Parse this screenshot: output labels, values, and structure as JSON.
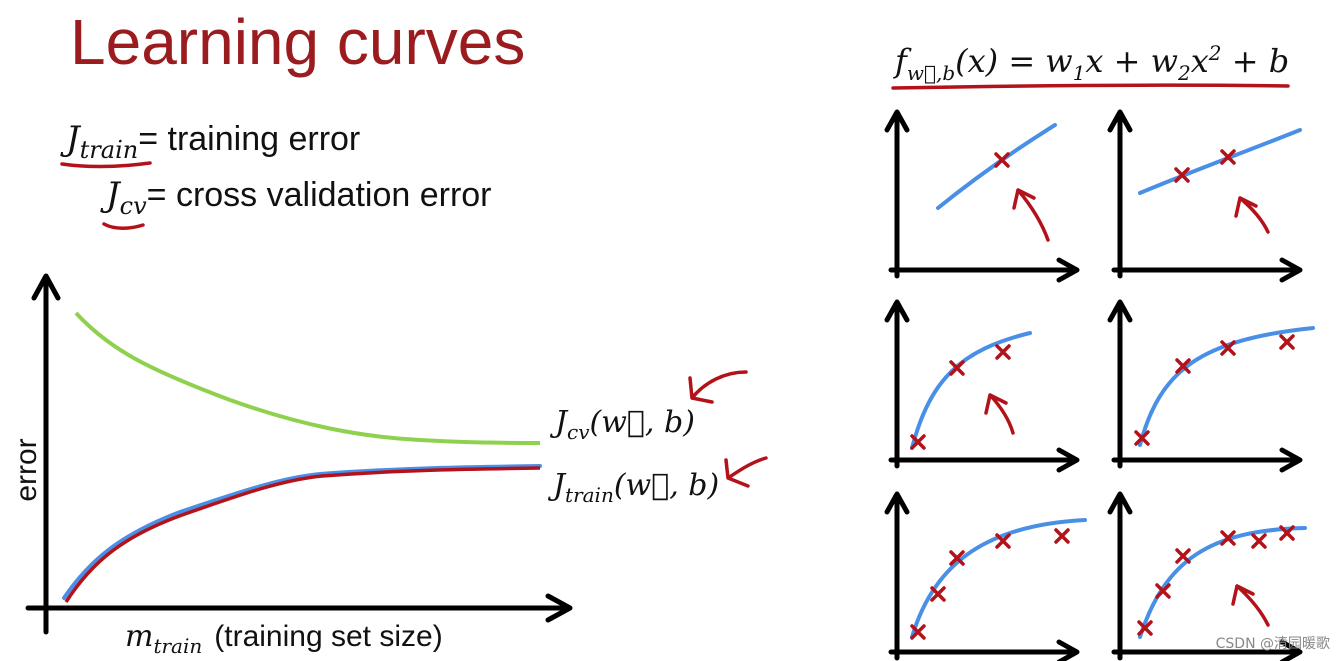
{
  "title": "Learning curves",
  "definitions": [
    {
      "symbol": "J",
      "subscript": "train",
      "text": "= training error"
    },
    {
      "symbol": "J",
      "subscript": "cv",
      "text": "= cross validation error"
    }
  ],
  "main_plot": {
    "y_label": "error",
    "x_label": {
      "symbol": "m",
      "subscript": "train",
      "text": "(training set size)"
    },
    "curve_labels": [
      {
        "symbol": "J",
        "subscript": "cv",
        "args": "(w⃗, b)"
      },
      {
        "symbol": "J",
        "subscript": "train",
        "args": "(w⃗, b)"
      }
    ]
  },
  "model": {
    "formula": [
      {
        "main": "f"
      },
      {
        "sub": "w⃗,b"
      },
      {
        "main": "(x) = w"
      },
      {
        "sub": "1"
      },
      {
        "main": "x + w"
      },
      {
        "sub": "2"
      },
      {
        "main": "x"
      },
      {
        "sup": "2"
      },
      {
        "main": " + b"
      }
    ]
  },
  "watermark": "CSDN @清园暖歌"
}
